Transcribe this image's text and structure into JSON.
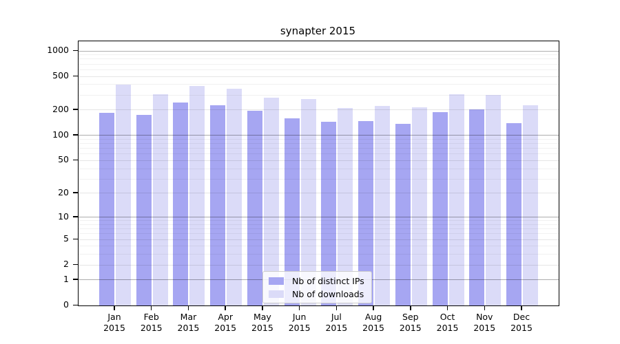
{
  "title": "synapter 2015",
  "chart_data": {
    "type": "bar",
    "title": "synapter 2015",
    "categories": [
      "Jan 2015",
      "Feb 2015",
      "Mar 2015",
      "Apr 2015",
      "May 2015",
      "Jun 2015",
      "Jul 2015",
      "Aug 2015",
      "Sep 2015",
      "Oct 2015",
      "Nov 2015",
      "Dec 2015"
    ],
    "series": [
      {
        "name": "Nb of distinct IPs",
        "color": "#a6a6f2",
        "values": [
          185,
          176,
          247,
          227,
          195,
          161,
          146,
          147,
          138,
          190,
          205,
          141
        ]
      },
      {
        "name": "Nb of downloads",
        "color": "#dbdbf8",
        "values": [
          398,
          308,
          383,
          356,
          283,
          268,
          212,
          222,
          216,
          308,
          300,
          229
        ]
      }
    ],
    "y_scale": "log1p",
    "y_ticks": [
      1000,
      500,
      200,
      100,
      50,
      20,
      10,
      5,
      2,
      1,
      0
    ],
    "y_minor_ticks": [
      3,
      4,
      6,
      7,
      8,
      9,
      30,
      40,
      60,
      70,
      80,
      90,
      300,
      400,
      600,
      700,
      800,
      900
    ],
    "ylim": [
      0,
      1300
    ],
    "xlabel": "",
    "ylabel": "",
    "grid": true,
    "legend_position": "lower center",
    "colors": {
      "frame": "#000000",
      "grid_decade": "rgba(0,0,0,0.32)",
      "grid_labeled": "rgba(0,0,0,0.10)",
      "grid_minor": "rgba(0,0,0,0.055)"
    }
  }
}
